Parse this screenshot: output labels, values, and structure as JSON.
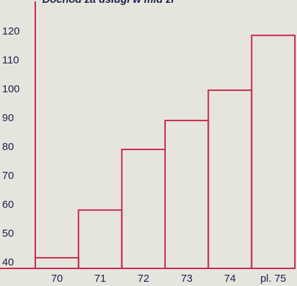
{
  "chart_data": {
    "type": "bar",
    "title": "Dochód za usługi w mld zł",
    "categories": [
      "70",
      "71",
      "72",
      "73",
      "74",
      "pl. 75"
    ],
    "values": [
      41.5,
      58,
      79,
      89,
      99.5,
      118.5
    ],
    "yticks": [
      "40",
      "50",
      "60",
      "70",
      "80",
      "90",
      "100",
      "110",
      "120"
    ],
    "ylim": [
      38,
      127
    ],
    "grid": false,
    "colors": {
      "bar_stroke": "#c8294a",
      "axis": "#c8294a",
      "text": "#1d1f4d"
    }
  }
}
